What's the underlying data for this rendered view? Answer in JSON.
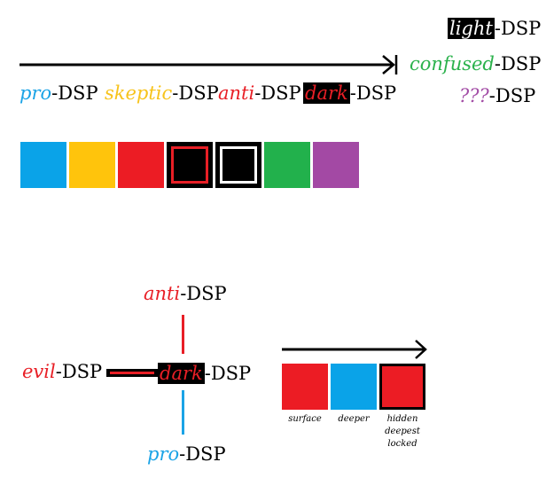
{
  "suffix": "-DSP",
  "top_scale": {
    "items": [
      {
        "prefix": "pro",
        "color": "#1aa3e6"
      },
      {
        "prefix": "skeptic",
        "color": "#f7c31b"
      },
      {
        "prefix": "anti",
        "color": "#e81f26"
      },
      {
        "prefix": "dark",
        "color": "#e81f26"
      }
    ],
    "side_items": [
      {
        "prefix": "light",
        "color": "#ffffff"
      },
      {
        "prefix": "confused",
        "color": "#2bb24c"
      },
      {
        "prefix": "???",
        "color": "#a34da6"
      }
    ],
    "swatches": [
      {
        "name": "pro-swatch",
        "fill": "#0aa3e8",
        "border": "none"
      },
      {
        "name": "skeptic-swatch",
        "fill": "#ffc40c",
        "border": "none"
      },
      {
        "name": "anti-swatch",
        "fill": "#ec1c24",
        "border": "none"
      },
      {
        "name": "dark-swatch",
        "fill": "#000000",
        "border": "#e81f26"
      },
      {
        "name": "light-swatch",
        "fill": "#000000",
        "border": "#ffffff"
      },
      {
        "name": "confused-swatch",
        "fill": "#22b14c",
        "border": "none"
      },
      {
        "name": "unknown-swatch",
        "fill": "#a349a4",
        "border": "none"
      }
    ]
  },
  "axis": {
    "top": {
      "prefix": "anti",
      "color": "#e81f26"
    },
    "left": {
      "prefix": "evil",
      "color": "#e81f26"
    },
    "center": {
      "prefix": "dark",
      "color": "#e81f26"
    },
    "bottom": {
      "prefix": "pro",
      "color": "#1aa3e6"
    }
  },
  "depth_scale": {
    "swatches": [
      {
        "name": "surface-swatch",
        "fill": "#ec1c24",
        "border": "none",
        "caption": "surface"
      },
      {
        "name": "deeper-swatch",
        "fill": "#0aa3e8",
        "border": "none",
        "caption": "deeper"
      },
      {
        "name": "hidden-swatch",
        "fill": "#ec1c24",
        "border": "#000000",
        "caption": "hidden\ndeepest\nlocked"
      }
    ]
  }
}
